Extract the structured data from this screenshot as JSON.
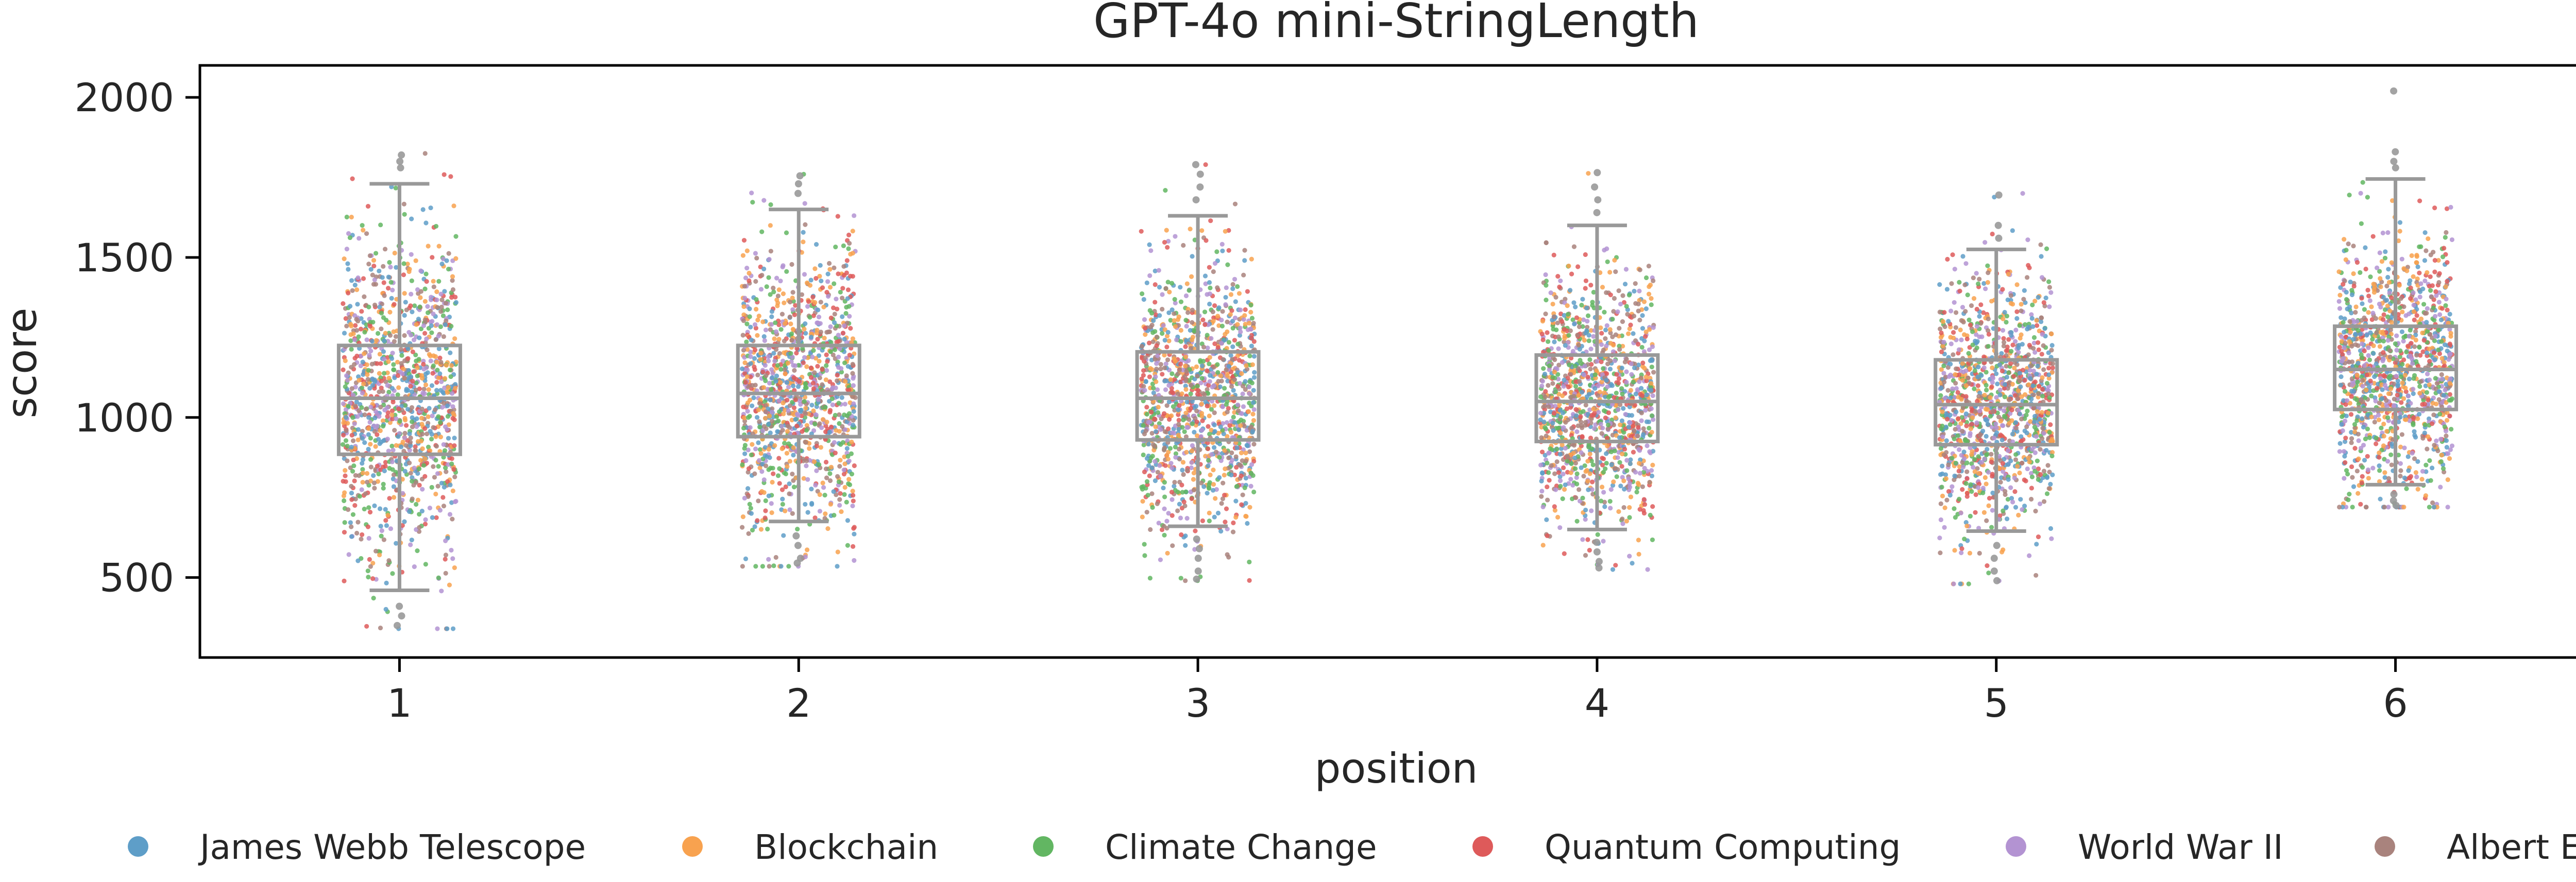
{
  "chart_data": {
    "type": "box",
    "title": "GPT-4o mini-StringLength",
    "xlabel": "position",
    "ylabel": "score",
    "categories": [
      "1",
      "2",
      "3",
      "4",
      "5",
      "6"
    ],
    "ylim": [
      250,
      2100
    ],
    "yticks": [
      500,
      1000,
      1500,
      2000
    ],
    "ytick_labels": [
      "500",
      "1000",
      "1500",
      "2000"
    ],
    "grid": false,
    "legend_position": "bottom",
    "box_color": "#999999",
    "boxes": [
      {
        "category": "1",
        "whisker_low": 460,
        "q1": 885,
        "median": 1060,
        "q3": 1225,
        "whisker_high": 1730,
        "points_min": 340,
        "points_max": 1825,
        "outliers": [
          1780,
          1800,
          1820,
          410,
          380,
          350
        ]
      },
      {
        "category": "2",
        "whisker_low": 675,
        "q1": 940,
        "median": 1075,
        "q3": 1225,
        "whisker_high": 1650,
        "points_min": 535,
        "points_max": 1760,
        "outliers": [
          1700,
          1730,
          1755,
          630,
          600,
          560,
          545
        ]
      },
      {
        "category": "3",
        "whisker_low": 660,
        "q1": 930,
        "median": 1060,
        "q3": 1205,
        "whisker_high": 1630,
        "points_min": 490,
        "points_max": 1790,
        "outliers": [
          1680,
          1720,
          1760,
          1790,
          620,
          590,
          560,
          520,
          495
        ]
      },
      {
        "category": "4",
        "whisker_low": 650,
        "q1": 925,
        "median": 1050,
        "q3": 1195,
        "whisker_high": 1600,
        "points_min": 525,
        "points_max": 1765,
        "outliers": [
          1640,
          1680,
          1720,
          1765,
          610,
          580,
          550,
          530
        ]
      },
      {
        "category": "5",
        "whisker_low": 645,
        "q1": 915,
        "median": 1040,
        "q3": 1180,
        "whisker_high": 1525,
        "points_min": 480,
        "points_max": 1700,
        "outliers": [
          1560,
          1600,
          1695,
          600,
          560,
          520,
          490
        ]
      },
      {
        "category": "6",
        "whisker_low": 790,
        "q1": 1025,
        "median": 1150,
        "q3": 1285,
        "whisker_high": 1745,
        "points_min": 720,
        "points_max": 2025,
        "outliers": [
          1780,
          1800,
          1830,
          2020,
          760,
          740,
          725
        ]
      }
    ],
    "series": [
      {
        "name": "James Webb Telescope",
        "color": "#5e9ec8"
      },
      {
        "name": "Blockchain",
        "color": "#f8a24f"
      },
      {
        "name": "Climate Change",
        "color": "#62b662"
      },
      {
        "name": "Quantum Computing",
        "color": "#de5a5a"
      },
      {
        "name": "World War II",
        "color": "#b393d2"
      },
      {
        "name": "Albert Einstein",
        "color": "#a9837d"
      }
    ]
  }
}
